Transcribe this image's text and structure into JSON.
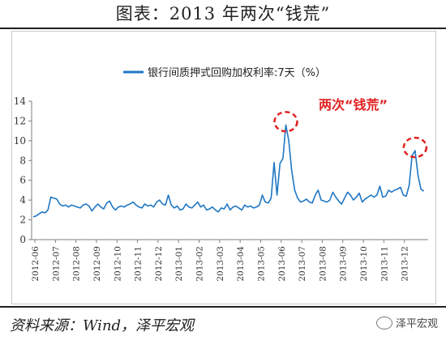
{
  "page": {
    "title": "图表：2013 年两次“钱荒”",
    "source": "资料来源：Wind，泽平宏观",
    "watermark": "泽平宏观"
  },
  "colors": {
    "series": "#1f77c4",
    "annotation": "#e02020",
    "axis": "#7f7f7f"
  },
  "chart_data": {
    "type": "line",
    "legend": "top-center",
    "annotation": "两次“钱荒”",
    "ylim": [
      0,
      14
    ],
    "yticks": [
      0,
      2,
      4,
      6,
      8,
      10,
      12,
      14
    ],
    "xticks": [
      "2012-06",
      "2012-07",
      "2012-08",
      "2012-09",
      "2012-10",
      "2012-11",
      "2012-12",
      "2013-01",
      "2013-02",
      "2013-03",
      "2013-04",
      "2013-05",
      "2013-06",
      "2013-07",
      "2013-08",
      "2013-09",
      "2013-10",
      "2013-11",
      "2013-12"
    ],
    "series": [
      {
        "name": "银行间质押式回购加权利率:7天（%）",
        "x_start": "2012-06-01",
        "x_end": "2013-12-31",
        "values": [
          2.3,
          2.4,
          2.6,
          2.8,
          2.7,
          3.0,
          4.3,
          4.2,
          4.1,
          3.6,
          3.4,
          3.5,
          3.3,
          3.5,
          3.4,
          3.3,
          3.2,
          3.5,
          3.6,
          3.4,
          2.9,
          3.3,
          3.6,
          3.3,
          3.1,
          3.7,
          3.9,
          3.3,
          3.0,
          3.3,
          3.4,
          3.3,
          3.5,
          3.6,
          3.8,
          3.5,
          3.3,
          3.2,
          3.6,
          3.4,
          3.5,
          3.3,
          3.8,
          4.0,
          3.6,
          3.5,
          4.5,
          3.5,
          3.2,
          3.4,
          3.0,
          3.1,
          3.6,
          3.3,
          3.2,
          3.5,
          3.8,
          3.3,
          3.5,
          3.0,
          3.1,
          3.3,
          3.0,
          2.8,
          3.2,
          3.1,
          3.6,
          3.0,
          3.3,
          3.4,
          3.2,
          3.0,
          3.5,
          3.3,
          3.4,
          3.2,
          3.3,
          3.5,
          4.5,
          3.8,
          3.7,
          4.2,
          7.8,
          4.5,
          7.7,
          8.2,
          11.6,
          10.0,
          7.0,
          5.0,
          4.2,
          3.8,
          3.9,
          4.1,
          3.8,
          3.7,
          4.5,
          5.0,
          4.0,
          3.9,
          3.8,
          4.0,
          4.8,
          4.3,
          3.9,
          3.6,
          4.2,
          4.8,
          4.5,
          4.0,
          4.3,
          4.7,
          3.8,
          4.1,
          4.3,
          4.5,
          4.3,
          4.5,
          5.4,
          4.3,
          4.4,
          5.0,
          4.8,
          5.0,
          5.1,
          5.3,
          4.5,
          4.4,
          5.5,
          8.5,
          9.0,
          6.5,
          5.1,
          4.9
        ]
      }
    ]
  }
}
